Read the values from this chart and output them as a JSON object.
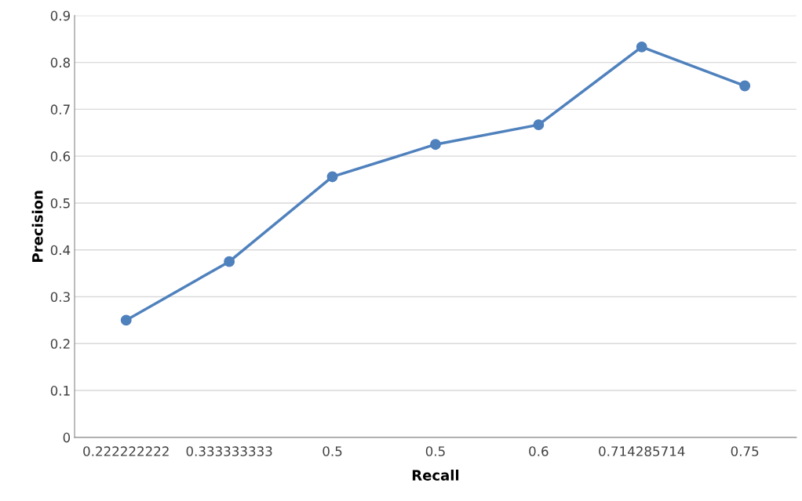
{
  "chart_data": {
    "type": "line",
    "xlabel": "Recall",
    "ylabel": "Precision",
    "categories": [
      "0.222222222",
      "0.333333333",
      "0.5",
      "0.5",
      "0.6",
      "0.714285714",
      "0.75"
    ],
    "series": [
      {
        "color": "#4f81bd",
        "values": [
          0.25,
          0.375,
          0.556,
          0.625,
          0.667,
          0.833,
          0.75
        ]
      }
    ],
    "ylim": [
      0,
      0.9
    ],
    "yticks": [
      0,
      0.1,
      0.2,
      0.3,
      0.4,
      0.5,
      0.6,
      0.7,
      0.8,
      0.9
    ],
    "grid": "y",
    "marker": "circle",
    "line_style": "solid"
  }
}
